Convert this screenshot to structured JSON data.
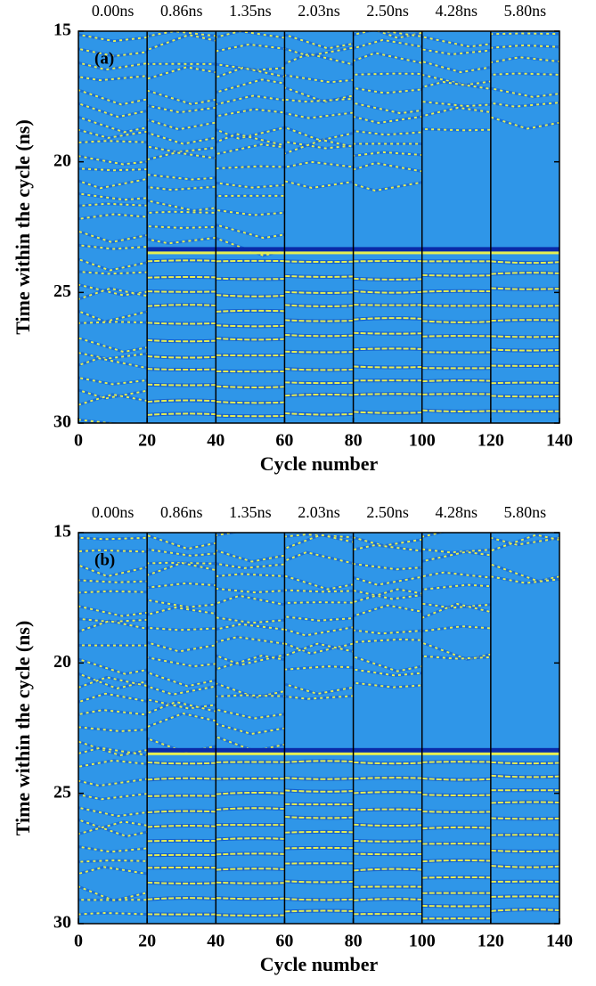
{
  "chart_data": [
    {
      "type": "heatmap",
      "panel_label": "(a)",
      "segment_labels": [
        "0.00ns",
        "0.86ns",
        "1.35ns",
        "2.03ns",
        "2.50ns",
        "4.28ns",
        "5.80ns"
      ],
      "dividers": [
        20,
        40,
        60,
        80,
        100,
        120
      ],
      "xlabel": "Cycle number",
      "ylabel": "Time within the cycle (ns)",
      "xlim": [
        0,
        140
      ],
      "ylim": [
        15,
        30
      ],
      "y_inverted": true,
      "xticks": [
        0,
        20,
        40,
        60,
        80,
        100,
        120,
        140
      ],
      "yticks": [
        15,
        20,
        25,
        30
      ]
    },
    {
      "type": "heatmap",
      "panel_label": "(b)",
      "segment_labels": [
        "0.00ns",
        "0.86ns",
        "1.35ns",
        "2.03ns",
        "2.50ns",
        "4.28ns",
        "5.80ns"
      ],
      "dividers": [
        20,
        40,
        60,
        80,
        100,
        120
      ],
      "xlabel": "Cycle number",
      "ylabel": "Time within the cycle (ns)",
      "xlim": [
        0,
        140
      ],
      "ylim": [
        15,
        30
      ],
      "y_inverted": true,
      "xticks": [
        0,
        20,
        40,
        60,
        80,
        100,
        120,
        140
      ],
      "yticks": [
        15,
        20,
        25,
        30
      ]
    }
  ]
}
